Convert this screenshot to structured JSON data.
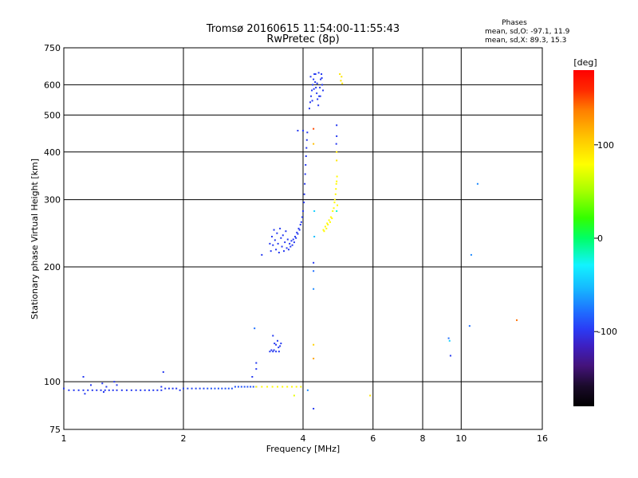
{
  "chart_data": {
    "type": "scatter",
    "title": "Tromsø 20160615 11:54:00-11:55:43",
    "subtitle": "RwPretec (8p)",
    "xlabel": "Frequency [MHz]",
    "ylabel": "Stationary phase Virtual Height [km]",
    "x_scale": "log",
    "y_scale": "log",
    "xlim": [
      1,
      16
    ],
    "ylim": [
      75,
      750
    ],
    "x_ticks": [
      "1",
      "2",
      "4",
      "6",
      "8",
      "10",
      "16"
    ],
    "x_tick_values": [
      1,
      2,
      4,
      6,
      8,
      10,
      16
    ],
    "y_ticks": [
      "75",
      "100",
      "200",
      "300",
      "400",
      "500",
      "600",
      "750"
    ],
    "y_tick_values": [
      75,
      100,
      200,
      300,
      400,
      500,
      600,
      750
    ],
    "grid": true,
    "phases_box": {
      "title": "Phases",
      "line_o": "mean, sd,O: -97.1, 11.9",
      "line_x": "mean, sd,X:  89.3, 15.3"
    },
    "colorbar": {
      "label": "[deg]",
      "ticks": [
        "100",
        "0",
        "-100"
      ],
      "tick_values": [
        100,
        0,
        -100
      ],
      "range": [
        -180,
        180
      ]
    },
    "series": [
      {
        "comment_free": true,
        "points": [
          [
            1.0,
            96,
            -110
          ],
          [
            1.03,
            95,
            -110
          ],
          [
            1.06,
            95,
            -110
          ],
          [
            1.09,
            95,
            -110
          ],
          [
            1.12,
            95,
            -110
          ],
          [
            1.15,
            95,
            -110
          ],
          [
            1.18,
            95,
            -110
          ],
          [
            1.21,
            95,
            -110
          ],
          [
            1.24,
            95,
            -110
          ],
          [
            1.27,
            95,
            -110
          ],
          [
            1.3,
            95,
            -110
          ],
          [
            1.33,
            95,
            -110
          ],
          [
            1.36,
            95,
            -110
          ],
          [
            1.4,
            95,
            -110
          ],
          [
            1.44,
            95,
            -110
          ],
          [
            1.48,
            95,
            -110
          ],
          [
            1.52,
            95,
            -110
          ],
          [
            1.56,
            95,
            -110
          ],
          [
            1.6,
            95,
            -110
          ],
          [
            1.64,
            95,
            -110
          ],
          [
            1.68,
            95,
            -110
          ],
          [
            1.72,
            95,
            -110
          ],
          [
            1.76,
            95,
            -110
          ],
          [
            1.8,
            96,
            -110
          ],
          [
            1.84,
            96,
            -110
          ],
          [
            1.88,
            96,
            -110
          ],
          [
            1.92,
            96,
            -110
          ],
          [
            1.96,
            95,
            -110
          ],
          [
            2.0,
            96,
            -105
          ],
          [
            2.05,
            96,
            -105
          ],
          [
            2.1,
            96,
            -105
          ],
          [
            2.15,
            96,
            -105
          ],
          [
            2.2,
            96,
            -105
          ],
          [
            2.25,
            96,
            -105
          ],
          [
            2.3,
            96,
            -100
          ],
          [
            2.35,
            96,
            -100
          ],
          [
            2.4,
            96,
            -100
          ],
          [
            2.45,
            96,
            -100
          ],
          [
            2.5,
            96,
            -100
          ],
          [
            2.55,
            96,
            -100
          ],
          [
            2.6,
            96,
            -100
          ],
          [
            2.65,
            96,
            -100
          ],
          [
            2.7,
            97,
            -100
          ],
          [
            2.75,
            97,
            -100
          ],
          [
            2.8,
            97,
            -100
          ],
          [
            2.85,
            97,
            -100
          ],
          [
            2.9,
            97,
            -100
          ],
          [
            2.95,
            97,
            -100
          ],
          [
            3.0,
            97,
            -100
          ],
          [
            3.05,
            97,
            -100
          ],
          [
            1.12,
            103,
            -110
          ],
          [
            1.17,
            98,
            -110
          ],
          [
            1.25,
            99,
            -110
          ],
          [
            1.28,
            97,
            -110
          ],
          [
            1.34,
            100,
            -110
          ],
          [
            1.13,
            93,
            -110
          ],
          [
            1.26,
            94,
            -110
          ],
          [
            1.78,
            106,
            -110
          ],
          [
            1.76,
            97,
            -110
          ],
          [
            1.36,
            98,
            -110
          ],
          [
            2.98,
            103,
            -110
          ],
          [
            3.05,
            108,
            -110
          ],
          [
            3.05,
            112,
            -110
          ],
          [
            3.02,
            138,
            -90
          ],
          [
            3.3,
            120,
            -110
          ],
          [
            3.36,
            120,
            -110
          ],
          [
            3.42,
            120,
            -110
          ],
          [
            3.48,
            120,
            -110
          ],
          [
            3.39,
            126,
            -110
          ],
          [
            3.5,
            124,
            -110
          ],
          [
            3.33,
            121,
            -110
          ],
          [
            3.45,
            128,
            -110
          ],
          [
            3.36,
            132,
            -110
          ],
          [
            3.52,
            126,
            -110
          ],
          [
            3.47,
            123,
            -110
          ],
          [
            3.42,
            125,
            -110
          ],
          [
            3.38,
            121,
            -110
          ],
          [
            3.15,
            215,
            -110
          ],
          [
            3.3,
            230,
            -110
          ],
          [
            3.32,
            220,
            -110
          ],
          [
            3.34,
            240,
            -110
          ],
          [
            3.36,
            228,
            -110
          ],
          [
            3.38,
            250,
            -110
          ],
          [
            3.4,
            235,
            -110
          ],
          [
            3.42,
            222,
            -110
          ],
          [
            3.44,
            245,
            -110
          ],
          [
            3.46,
            230,
            -110
          ],
          [
            3.48,
            218,
            -110
          ],
          [
            3.5,
            252,
            -110
          ],
          [
            3.52,
            238,
            -110
          ],
          [
            3.54,
            226,
            -110
          ],
          [
            3.56,
            242,
            -110
          ],
          [
            3.58,
            220,
            -110
          ],
          [
            3.6,
            232,
            -110
          ],
          [
            3.62,
            248,
            -110
          ],
          [
            3.64,
            224,
            -110
          ],
          [
            3.66,
            236,
            -110
          ],
          [
            3.68,
            222,
            -110
          ],
          [
            3.7,
            230,
            -110
          ],
          [
            3.72,
            226,
            -110
          ],
          [
            3.74,
            234,
            -110
          ],
          [
            3.76,
            228,
            -110
          ],
          [
            3.78,
            236,
            -110
          ],
          [
            3.8,
            232,
            -110
          ],
          [
            3.82,
            240,
            -110
          ],
          [
            3.84,
            238,
            -110
          ],
          [
            3.86,
            246,
            -110
          ],
          [
            3.88,
            244,
            -110
          ],
          [
            3.9,
            252,
            -110
          ],
          [
            3.92,
            250,
            -110
          ],
          [
            3.94,
            258,
            -110
          ],
          [
            3.96,
            262,
            -110
          ],
          [
            3.98,
            270,
            -110
          ],
          [
            4.0,
            280,
            -110
          ],
          [
            4.02,
            295,
            -110
          ],
          [
            4.03,
            310,
            -110
          ],
          [
            4.04,
            330,
            -110
          ],
          [
            4.05,
            350,
            -110
          ],
          [
            4.06,
            370,
            -110
          ],
          [
            4.07,
            390,
            -110
          ],
          [
            4.08,
            410,
            -110
          ],
          [
            4.09,
            430,
            -110
          ],
          [
            4.1,
            450,
            -110
          ],
          [
            3.88,
            455,
            -110
          ],
          [
            4.0,
            455,
            -110
          ],
          [
            4.15,
            520,
            -110
          ],
          [
            4.17,
            540,
            -110
          ],
          [
            4.19,
            560,
            -110
          ],
          [
            4.21,
            580,
            -110
          ],
          [
            4.23,
            600,
            -110
          ],
          [
            4.25,
            620,
            -110
          ],
          [
            4.27,
            640,
            -110
          ],
          [
            4.29,
            610,
            -110
          ],
          [
            4.31,
            590,
            -110
          ],
          [
            4.33,
            570,
            -110
          ],
          [
            4.35,
            550,
            -110
          ],
          [
            4.37,
            530,
            -110
          ],
          [
            4.39,
            560,
            -110
          ],
          [
            4.41,
            590,
            -110
          ],
          [
            4.43,
            620,
            -110
          ],
          [
            4.45,
            640,
            -110
          ],
          [
            4.47,
            600,
            -110
          ],
          [
            4.49,
            580,
            -110
          ],
          [
            4.18,
            630,
            -110
          ],
          [
            4.22,
            545,
            -110
          ],
          [
            4.26,
            585,
            -110
          ],
          [
            4.3,
            640,
            -110
          ],
          [
            4.34,
            605,
            -110
          ],
          [
            4.38,
            645,
            -110
          ],
          [
            4.42,
            560,
            -110
          ],
          [
            4.46,
            625,
            -110
          ],
          [
            4.25,
            205,
            -110
          ],
          [
            4.25,
            195,
            -90
          ],
          [
            4.25,
            175,
            -80
          ],
          [
            4.25,
            85,
            -110
          ],
          [
            4.11,
            95,
            -80
          ],
          [
            4.27,
            280,
            -50
          ],
          [
            4.27,
            240,
            -60
          ],
          [
            4.5,
            250,
            90
          ],
          [
            4.55,
            255,
            90
          ],
          [
            4.6,
            260,
            90
          ],
          [
            4.65,
            265,
            90
          ],
          [
            4.7,
            270,
            90
          ],
          [
            4.75,
            280,
            90
          ],
          [
            4.8,
            295,
            90
          ],
          [
            4.83,
            310,
            90
          ],
          [
            4.85,
            330,
            90
          ],
          [
            4.87,
            345,
            90
          ],
          [
            4.52,
            248,
            90
          ],
          [
            4.58,
            252,
            90
          ],
          [
            4.62,
            258,
            90
          ],
          [
            4.68,
            262,
            90
          ],
          [
            4.73,
            268,
            90
          ],
          [
            4.78,
            285,
            90
          ],
          [
            4.81,
            300,
            90
          ],
          [
            4.84,
            320,
            90
          ],
          [
            4.86,
            335,
            90
          ],
          [
            4.88,
            290,
            90
          ],
          [
            4.25,
            125,
            110
          ],
          [
            4.25,
            115,
            130
          ],
          [
            4.25,
            460,
            160
          ],
          [
            4.25,
            420,
            120
          ],
          [
            4.86,
            470,
            -110
          ],
          [
            4.86,
            440,
            -110
          ],
          [
            4.85,
            420,
            -110
          ],
          [
            4.86,
            400,
            100
          ],
          [
            4.86,
            380,
            100
          ],
          [
            4.86,
            280,
            -20
          ],
          [
            4.95,
            640,
            100
          ],
          [
            5.0,
            630,
            100
          ],
          [
            4.98,
            615,
            100
          ],
          [
            5.02,
            605,
            100
          ],
          [
            3.05,
            97,
            90
          ],
          [
            3.15,
            97,
            90
          ],
          [
            3.25,
            97,
            90
          ],
          [
            3.35,
            97,
            90
          ],
          [
            3.45,
            97,
            90
          ],
          [
            3.55,
            97,
            90
          ],
          [
            3.65,
            97,
            90
          ],
          [
            3.75,
            97,
            90
          ],
          [
            3.85,
            97,
            90
          ],
          [
            3.95,
            97,
            90
          ],
          [
            3.8,
            92,
            80
          ],
          [
            5.9,
            92,
            100
          ],
          [
            9.3,
            130,
            -90
          ],
          [
            9.35,
            128,
            -50
          ],
          [
            9.4,
            117,
            -110
          ],
          [
            10.5,
            140,
            -90
          ],
          [
            10.6,
            215,
            -80
          ],
          [
            11.0,
            330,
            -80
          ],
          [
            13.8,
            145,
            150
          ]
        ]
      }
    ]
  }
}
